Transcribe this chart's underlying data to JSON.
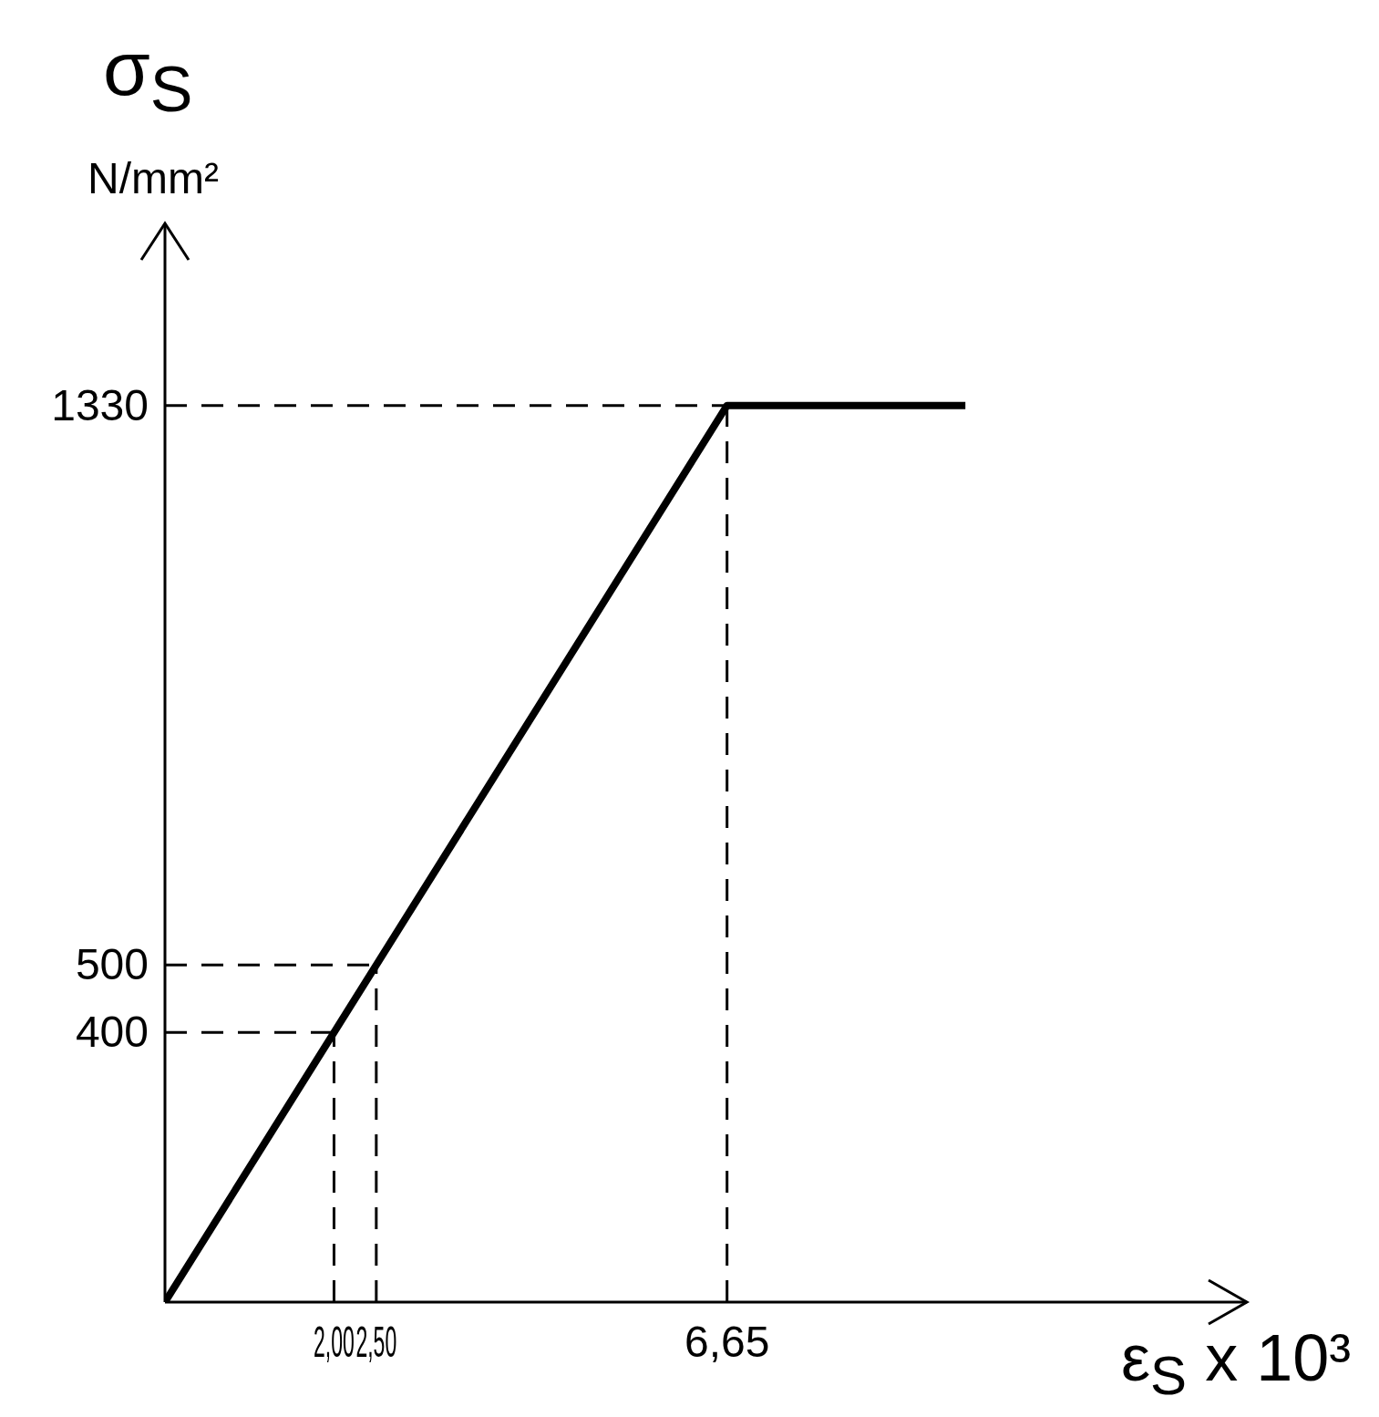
{
  "chart_data": {
    "type": "line",
    "ylabel": "σ$_{S}$",
    "xlabel": "ε$_{S}$ x 10³",
    "annotations": [
      "N/mm²"
    ],
    "series": [
      {
        "color": "#000000",
        "x": [
          0,
          6.65,
          9.47
        ],
        "values": [
          0,
          1330,
          1330
        ]
      }
    ],
    "xlim": [
      0,
      12.8
    ],
    "ylim": [
      0,
      1600
    ],
    "xticks": [
      {
        "value": 2,
        "label": "2,00"
      },
      {
        "value": 2.5,
        "label": "2,50"
      },
      {
        "value": 6.65,
        "label": "6,65"
      }
    ],
    "yticks": [
      400,
      500,
      1330
    ],
    "ref_lines": [
      {
        "axis": "x",
        "value": 2,
        "line_style": "dashed"
      },
      {
        "axis": "x",
        "value": 2.5,
        "line_style": "dashed"
      },
      {
        "axis": "x",
        "value": 6.65,
        "line_style": "dashed"
      },
      {
        "axis": "y",
        "value": 400,
        "line_style": "dashed"
      },
      {
        "axis": "y",
        "value": 500,
        "line_style": "dashed"
      },
      {
        "axis": "y",
        "value": 1330,
        "line_style": "dashed"
      }
    ],
    "grid": false,
    "marker": "none",
    "line_style": "solid"
  }
}
